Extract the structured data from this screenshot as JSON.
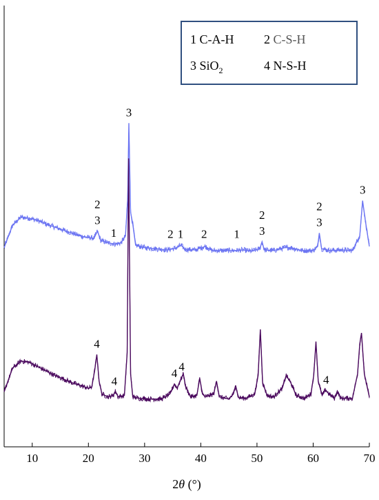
{
  "chart_data": {
    "type": "line",
    "xlabel_prefix": "2",
    "xlabel_theta": "θ",
    "xlabel_suffix": " (°)",
    "xlim": [
      5,
      70
    ],
    "x_ticks": [
      "10",
      "20",
      "30",
      "40",
      "50",
      "60",
      "70"
    ],
    "y_axis_ticks_shown": false,
    "grid": false,
    "legend": {
      "placement": "top-right",
      "border_color": "#2f4f7f",
      "entries": [
        {
          "number": "1",
          "text": "C-A-H",
          "color": "#000000"
        },
        {
          "number": "2",
          "text": "C-S-H",
          "color": "#555555"
        },
        {
          "number": "3",
          "text_main": "SiO",
          "text_sub": "2",
          "color": "#000000"
        },
        {
          "number": "4",
          "text": "N-S-H",
          "color": "#000000"
        }
      ]
    },
    "series": [
      {
        "color": "#6b74f2",
        "points": [
          [
            5,
            0.1
          ],
          [
            6.5,
            0.48
          ],
          [
            8,
            0.62
          ],
          [
            9.5,
            0.6
          ],
          [
            11,
            0.56
          ],
          [
            12.5,
            0.5
          ],
          [
            14,
            0.45
          ],
          [
            15.5,
            0.4
          ],
          [
            17,
            0.35
          ],
          [
            18.5,
            0.3
          ],
          [
            20,
            0.27
          ],
          [
            21,
            0.26
          ],
          [
            21.6,
            0.38
          ],
          [
            22.2,
            0.22
          ],
          [
            23.5,
            0.18
          ],
          [
            24.8,
            0.16
          ],
          [
            25.8,
            0.18
          ],
          [
            26.6,
            0.3
          ],
          [
            27.0,
            0.95
          ],
          [
            27.2,
            2.22
          ],
          [
            27.5,
            0.7
          ],
          [
            27.9,
            0.5
          ],
          [
            28.4,
            0.14
          ],
          [
            30,
            0.1
          ],
          [
            32,
            0.08
          ],
          [
            34,
            0.06
          ],
          [
            35.5,
            0.09
          ],
          [
            36.5,
            0.14
          ],
          [
            37.2,
            0.07
          ],
          [
            39,
            0.06
          ],
          [
            40.8,
            0.12
          ],
          [
            42,
            0.05
          ],
          [
            44,
            0.05
          ],
          [
            46,
            0.05
          ],
          [
            47.5,
            0.06
          ],
          [
            49,
            0.04
          ],
          [
            50.5,
            0.08
          ],
          [
            50.9,
            0.2
          ],
          [
            51.3,
            0.06
          ],
          [
            53,
            0.05
          ],
          [
            55,
            0.1
          ],
          [
            56,
            0.1
          ],
          [
            58,
            0.05
          ],
          [
            60,
            0.05
          ],
          [
            60.8,
            0.12
          ],
          [
            61.1,
            0.35
          ],
          [
            61.5,
            0.08
          ],
          [
            63,
            0.05
          ],
          [
            65,
            0.06
          ],
          [
            67,
            0.05
          ],
          [
            68.3,
            0.3
          ],
          [
            68.8,
            0.9
          ],
          [
            69.3,
            0.55
          ],
          [
            70,
            0.12
          ]
        ]
      },
      {
        "color": "#4b0a5e",
        "points": [
          [
            5,
            0.15
          ],
          [
            6.5,
            0.48
          ],
          [
            8,
            0.58
          ],
          [
            9.5,
            0.56
          ],
          [
            11,
            0.5
          ],
          [
            12.5,
            0.44
          ],
          [
            14,
            0.38
          ],
          [
            15.5,
            0.33
          ],
          [
            17,
            0.28
          ],
          [
            18.5,
            0.24
          ],
          [
            20,
            0.2
          ],
          [
            20.6,
            0.22
          ],
          [
            21.1,
            0.44
          ],
          [
            21.5,
            0.67
          ],
          [
            21.9,
            0.3
          ],
          [
            22.4,
            0.12
          ],
          [
            23.5,
            0.08
          ],
          [
            24.4,
            0.1
          ],
          [
            24.8,
            0.16
          ],
          [
            25.3,
            0.08
          ],
          [
            26.4,
            0.1
          ],
          [
            26.9,
            0.7
          ],
          [
            27.15,
            3.4
          ],
          [
            27.5,
            0.4
          ],
          [
            27.9,
            0.08
          ],
          [
            29,
            0.06
          ],
          [
            31,
            0.05
          ],
          [
            33,
            0.05
          ],
          [
            34.5,
            0.12
          ],
          [
            35.3,
            0.26
          ],
          [
            35.8,
            0.2
          ],
          [
            36.3,
            0.3
          ],
          [
            36.6,
            0.35
          ],
          [
            36.9,
            0.4
          ],
          [
            37.3,
            0.22
          ],
          [
            38.2,
            0.08
          ],
          [
            39.3,
            0.1
          ],
          [
            39.8,
            0.34
          ],
          [
            40.3,
            0.12
          ],
          [
            40.8,
            0.08
          ],
          [
            42.3,
            0.12
          ],
          [
            42.8,
            0.3
          ],
          [
            43.3,
            0.08
          ],
          [
            45,
            0.05
          ],
          [
            45.8,
            0.12
          ],
          [
            46.2,
            0.24
          ],
          [
            46.7,
            0.07
          ],
          [
            48,
            0.06
          ],
          [
            49.6,
            0.12
          ],
          [
            50.2,
            0.38
          ],
          [
            50.6,
            1.02
          ],
          [
            51.0,
            0.28
          ],
          [
            51.8,
            0.1
          ],
          [
            53,
            0.08
          ],
          [
            54.5,
            0.2
          ],
          [
            55.2,
            0.38
          ],
          [
            56.0,
            0.28
          ],
          [
            57,
            0.1
          ],
          [
            58.5,
            0.06
          ],
          [
            59.6,
            0.12
          ],
          [
            60.1,
            0.38
          ],
          [
            60.5,
            0.85
          ],
          [
            60.9,
            0.3
          ],
          [
            61.6,
            0.1
          ],
          [
            62.2,
            0.18
          ],
          [
            62.8,
            0.12
          ],
          [
            63.8,
            0.06
          ],
          [
            64.3,
            0.16
          ],
          [
            64.9,
            0.06
          ],
          [
            66,
            0.06
          ],
          [
            67,
            0.06
          ],
          [
            67.9,
            0.4
          ],
          [
            68.3,
            0.82
          ],
          [
            68.6,
            0.97
          ],
          [
            69.1,
            0.4
          ],
          [
            70,
            0.08
          ]
        ]
      }
    ],
    "annotations": [
      {
        "text": "3",
        "x": 27.2,
        "series": 0
      },
      {
        "text": "2",
        "x": 21.6,
        "series": 0,
        "stack": 2
      },
      {
        "text": "3",
        "x": 21.6,
        "series": 0,
        "stack": 1
      },
      {
        "text": "1",
        "x": 24.5,
        "series": 0,
        "stack": 1
      },
      {
        "text": "2",
        "x": 34.6,
        "series": 0,
        "stack": 1
      },
      {
        "text": "1",
        "x": 36.4,
        "series": 0,
        "stack": 1
      },
      {
        "text": "2",
        "x": 40.6,
        "series": 0,
        "stack": 1
      },
      {
        "text": "1",
        "x": 46.4,
        "series": 0,
        "stack": 1
      },
      {
        "text": "2",
        "x": 50.9,
        "series": 0,
        "stack": 2
      },
      {
        "text": "3",
        "x": 50.9,
        "series": 0,
        "stack": 1
      },
      {
        "text": "2",
        "x": 61.1,
        "series": 0,
        "stack": 2
      },
      {
        "text": "3",
        "x": 61.1,
        "series": 0,
        "stack": 1
      },
      {
        "text": "3",
        "x": 68.8,
        "series": 0,
        "stack": 1
      },
      {
        "text": "4",
        "x": 21.5,
        "series": 1,
        "stack": 1
      },
      {
        "text": "4",
        "x": 24.6,
        "series": 1,
        "stack": 1
      },
      {
        "text": "4",
        "x": 35.3,
        "series": 1,
        "stack": 1
      },
      {
        "text": "4",
        "x": 36.6,
        "series": 1,
        "stack": 1
      },
      {
        "text": "4",
        "x": 62.3,
        "series": 1,
        "stack": 1
      }
    ]
  }
}
